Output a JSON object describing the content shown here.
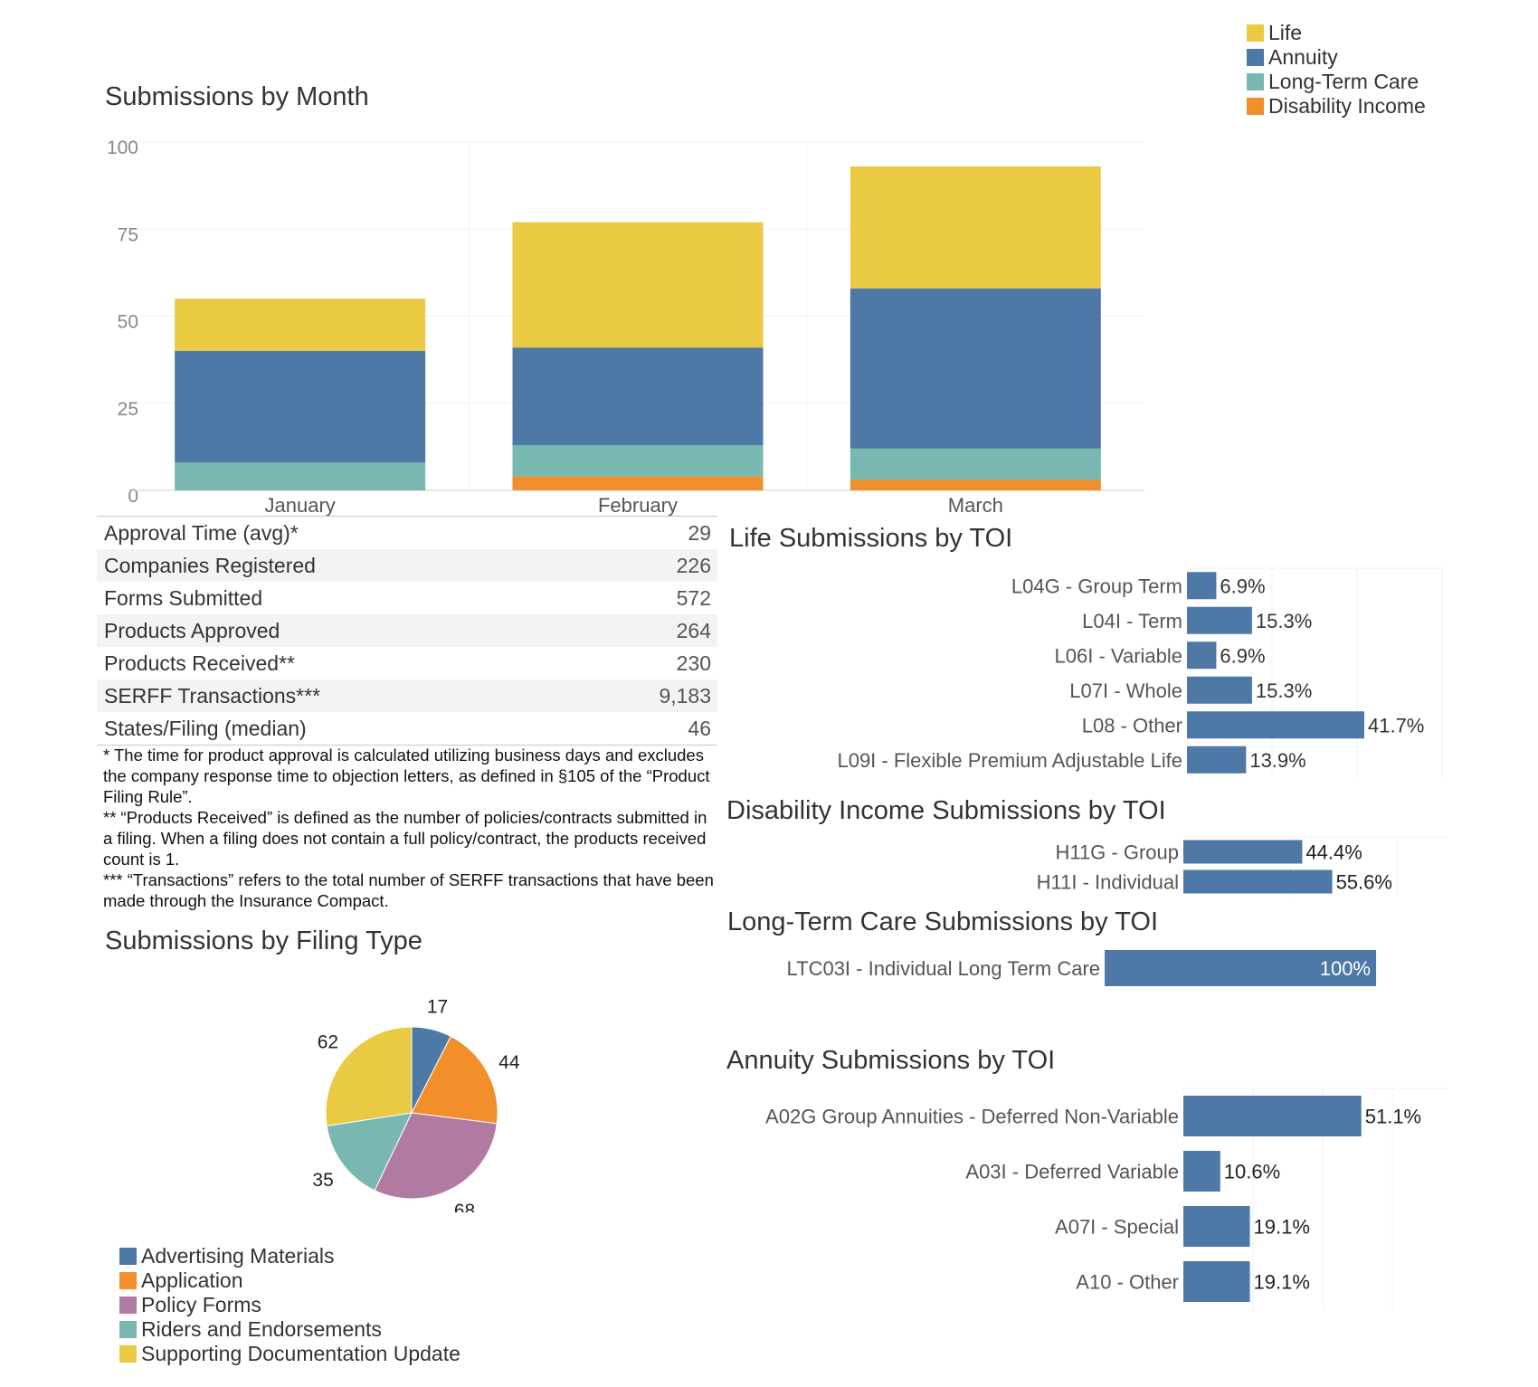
{
  "colors": {
    "Life": "#eac943",
    "Annuity": "#4e78a6",
    "Long-Term Care": "#79b7b1",
    "Disability Income": "#f28e2b",
    "Advertising Materials": "#4e78a6",
    "Application": "#f28e2b",
    "Policy Forms": "#b07aa1",
    "Riders and Endorsements": "#79b7b1",
    "Supporting Documentation Update": "#eac943",
    "toi_bar": "#4e78a6"
  },
  "stats": {
    "rows": [
      {
        "label": "Approval Time (avg)*",
        "value": "29"
      },
      {
        "label": "Companies Registered",
        "value": "226"
      },
      {
        "label": "Forms Submitted",
        "value": "572"
      },
      {
        "label": "Products Approved",
        "value": "264"
      },
      {
        "label": "Products Received**",
        "value": "230"
      },
      {
        "label": "SERFF Transactions***",
        "value": "9,183"
      },
      {
        "label": "States/Filing (median)",
        "value": "46"
      }
    ]
  },
  "footnotes": [
    "* The time for product approval is calculated utilizing business days and excludes the company response time to objection letters, as defined in §105 of the “Product Filing Rule”.",
    "** “Products Received” is defined as the number of policies/contracts submitted in a filing. When a filing does not contain a full policy/contract, the products received count is 1.",
    "*** “Transactions” refers to the total number of SERFF transactions that have been made through the Insurance Compact."
  ],
  "chart_data": [
    {
      "id": "month",
      "type": "bar",
      "stacked": true,
      "title": "Submissions by Month",
      "categories": [
        "January",
        "February",
        "March"
      ],
      "series": [
        {
          "name": "Disability Income",
          "values": [
            0,
            4,
            3
          ]
        },
        {
          "name": "Long-Term Care",
          "values": [
            8,
            9,
            9
          ]
        },
        {
          "name": "Annuity",
          "values": [
            32,
            28,
            46
          ]
        },
        {
          "name": "Life",
          "values": [
            15,
            36,
            35
          ]
        }
      ],
      "yticks": [
        "0",
        "25",
        "50",
        "75",
        "100"
      ],
      "ylim": [
        0,
        100
      ],
      "legend": [
        "Life",
        "Annuity",
        "Long-Term Care",
        "Disability Income"
      ],
      "legend_position": "top-right",
      "grid": true
    },
    {
      "id": "filing",
      "type": "pie",
      "title": "Submissions by Filing Type",
      "slices": [
        {
          "name": "Advertising Materials",
          "value": 17
        },
        {
          "name": "Application",
          "value": 44
        },
        {
          "name": "Policy Forms",
          "value": 68
        },
        {
          "name": "Riders and Endorsements",
          "value": 35
        },
        {
          "name": "Supporting Documentation Update",
          "value": 62
        }
      ],
      "labels": [
        "17",
        "44",
        "68",
        "35",
        "62"
      ],
      "legend_position": "bottom-left"
    },
    {
      "id": "life",
      "type": "bar",
      "orientation": "horizontal",
      "title": "Life Submissions by TOI",
      "categories": [
        "L04G - Group Term",
        "L04I - Term",
        "L06I - Variable",
        "L07I - Whole",
        "L08 - Other",
        "L09I - Flexible Premium Adjustable Life"
      ],
      "values": [
        6.9,
        15.3,
        6.9,
        15.3,
        41.7,
        13.9
      ],
      "labels": [
        "6.9%",
        "15.3%",
        "6.9%",
        "15.3%",
        "41.7%",
        "13.9%"
      ],
      "xlim": [
        0,
        60
      ]
    },
    {
      "id": "disability",
      "type": "bar",
      "orientation": "horizontal",
      "title": "Disability Income Submissions by TOI",
      "categories": [
        "H11G - Group",
        "H11I - Individual"
      ],
      "values": [
        44.4,
        55.6
      ],
      "labels": [
        "44.4%",
        "55.6%"
      ],
      "xlim": [
        0,
        100
      ]
    },
    {
      "id": "ltc",
      "type": "bar",
      "orientation": "horizontal",
      "title": "Long-Term Care Submissions by TOI",
      "categories": [
        "LTC03I - Individual Long Term Care"
      ],
      "values": [
        100
      ],
      "labels": [
        "100%"
      ],
      "xlim": [
        0,
        100
      ]
    },
    {
      "id": "annuity",
      "type": "bar",
      "orientation": "horizontal",
      "title": "Annuity Submissions by TOI",
      "categories": [
        "A02G Group Annuities - Deferred Non-Variable",
        "A03I - Deferred Variable",
        "A07I - Special",
        "A10 - Other"
      ],
      "values": [
        51.1,
        10.6,
        19.1,
        19.1
      ],
      "labels": [
        "51.1%",
        "10.6%",
        "19.1%",
        "19.1%"
      ],
      "xlim": [
        0,
        80
      ]
    }
  ]
}
